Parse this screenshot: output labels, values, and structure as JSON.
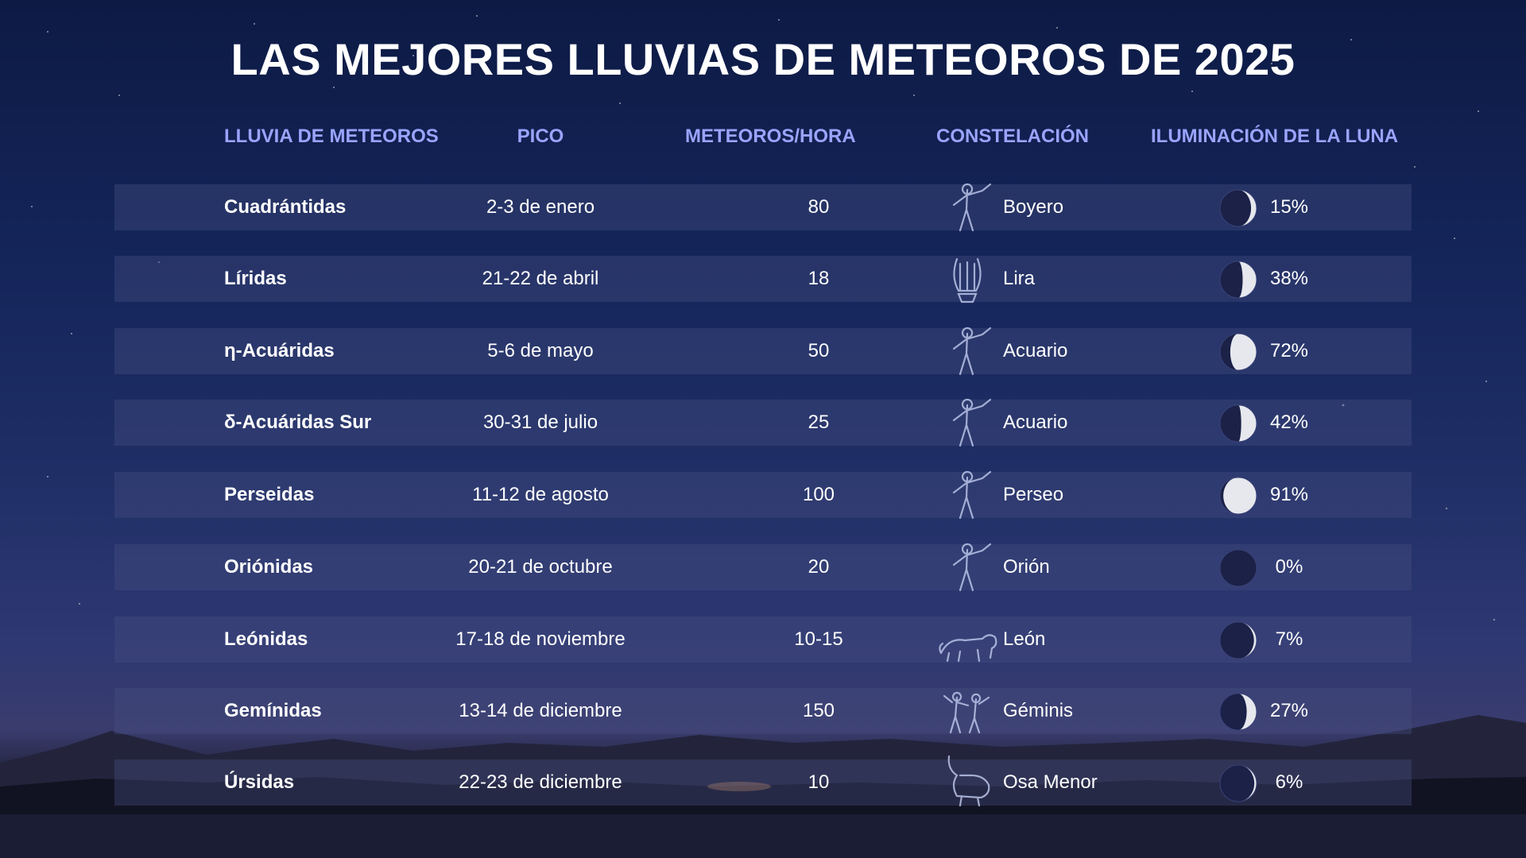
{
  "title": "LAS MEJORES LLUVIAS DE METEOROS DE 2025",
  "columns": [
    "LLUVIA DE METEOROS",
    "PICO",
    "METEOROS/HORA",
    "CONSTELACIÓN",
    "ILUMINACIÓN DE LA LUNA"
  ],
  "colors": {
    "header": "#9aa4ff",
    "text": "#ffffff",
    "row_band": "#464f82"
  },
  "rows": [
    {
      "name": "Cuadrántidas",
      "peak": "2-3 de enero",
      "rate": "80",
      "constellation": "Boyero",
      "constellation_icon": "bootes-figure-icon",
      "moon": "15%",
      "moon_illumination": 0.15
    },
    {
      "name": "Líridas",
      "peak": "21-22 de abril",
      "rate": "18",
      "constellation": "Lira",
      "constellation_icon": "lyre-icon",
      "moon": "38%",
      "moon_illumination": 0.38
    },
    {
      "name": "η-Acuáridas",
      "peak": "5-6 de mayo",
      "rate": "50",
      "constellation": "Acuario",
      "constellation_icon": "aquarius-figure-icon",
      "moon": "72%",
      "moon_illumination": 0.72
    },
    {
      "name": "δ-Acuáridas Sur",
      "peak": "30-31 de julio",
      "rate": "25",
      "constellation": "Acuario",
      "constellation_icon": "aquarius-figure-icon",
      "moon": "42%",
      "moon_illumination": 0.42
    },
    {
      "name": "Perseidas",
      "peak": "11-12 de agosto",
      "rate": "100",
      "constellation": "Perseo",
      "constellation_icon": "perseus-figure-icon",
      "moon": "91%",
      "moon_illumination": 0.91
    },
    {
      "name": "Oriónidas",
      "peak": "20-21 de octubre",
      "rate": "20",
      "constellation": "Orión",
      "constellation_icon": "orion-figure-icon",
      "moon": "0%",
      "moon_illumination": 0.0
    },
    {
      "name": "Leónidas",
      "peak": "17-18 de noviembre",
      "rate": "10-15",
      "constellation": "León",
      "constellation_icon": "lion-icon",
      "moon": "7%",
      "moon_illumination": 0.07
    },
    {
      "name": "Gemínidas",
      "peak": "13-14 de diciembre",
      "rate": "150",
      "constellation": "Géminis",
      "constellation_icon": "twins-figure-icon",
      "moon": "27%",
      "moon_illumination": 0.27
    },
    {
      "name": "Úrsidas",
      "peak": "22-23 de diciembre",
      "rate": "10",
      "constellation": "Osa Menor",
      "constellation_icon": "bear-icon",
      "moon": "6%",
      "moon_illumination": 0.06
    }
  ]
}
